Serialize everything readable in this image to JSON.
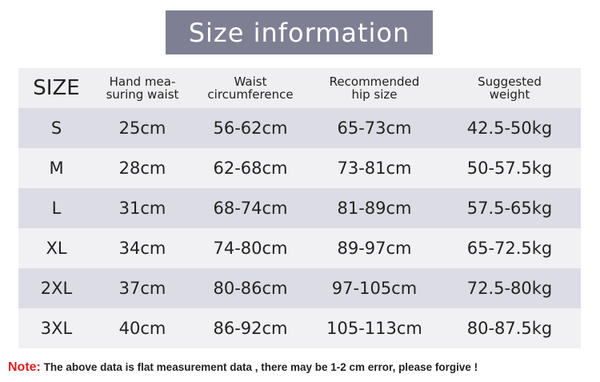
{
  "title": "Size information",
  "table": {
    "headers": [
      "SIZE",
      "Hand mea-\nsuring waist",
      "Waist\ncircumference",
      "Recommended\nhip size",
      "Suggested\nweight"
    ],
    "rows": [
      [
        "S",
        "25cm",
        "56-62cm",
        "65-73cm",
        "42.5-50kg"
      ],
      [
        "M",
        "28cm",
        "62-68cm",
        "73-81cm",
        "50-57.5kg"
      ],
      [
        "L",
        "31cm",
        "68-74cm",
        "81-89cm",
        "57.5-65kg"
      ],
      [
        "XL",
        "34cm",
        "74-80cm",
        "89-97cm",
        "65-72.5kg"
      ],
      [
        "2XL",
        "37cm",
        "80-86cm",
        "97-105cm",
        "72.5-80kg"
      ],
      [
        "3XL",
        "40cm",
        "86-92cm",
        "105-113cm",
        "80-87.5kg"
      ]
    ]
  },
  "note": {
    "label": "Note:",
    "text": " The above data is flat measurement data , there may be 1-2 cm error, please forgive !"
  },
  "colors": {
    "title_bg": "#7e7f93",
    "row_dark": "#dcdce4",
    "row_light": "#f1f1f3",
    "note_label": "#e02020"
  }
}
